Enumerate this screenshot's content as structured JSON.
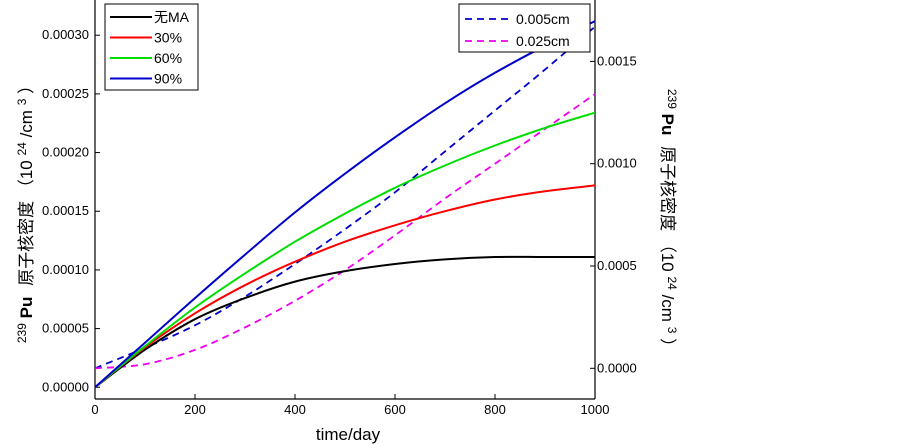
{
  "chart_data": {
    "type": "line",
    "xlabel": "time/day",
    "x_ticks": [
      "0",
      "200",
      "400",
      "600",
      "800",
      "1000"
    ],
    "xlim": [
      0,
      1000
    ],
    "y_left": {
      "label_prefix": "239",
      "label_element": "Pu",
      "label_chinese": "原子核密度",
      "label_unit": "（10",
      "label_unit_sup": "24",
      "label_unit_tail": "/cm",
      "label_unit_sup2": "3",
      "label_unit_close": "）",
      "ylim": [
        -1e-05,
        0.00033
      ],
      "ticks": [
        "0.00000",
        "0.00005",
        "0.00010",
        "0.00015",
        "0.00020",
        "0.00025",
        "0.00030"
      ]
    },
    "y_right": {
      "label_prefix": "239",
      "label_element": "Pu",
      "label_chinese": "原子核密度",
      "label_unit": "（10",
      "label_unit_sup": "24",
      "label_unit_tail": "/cm",
      "label_unit_sup2": "3",
      "label_unit_close": "）",
      "ylim": [
        -0.00015,
        0.0018
      ],
      "ticks": [
        "0.0000",
        "0.0005",
        "0.0010",
        "0.0015"
      ]
    },
    "series_left": [
      {
        "name": "无MA",
        "color": "#000000",
        "x": [
          0,
          100,
          200,
          300,
          400,
          500,
          600,
          700,
          800,
          900,
          1000
        ],
        "y": [
          0.0,
          3.2e-05,
          5.8e-05,
          7.6e-05,
          9e-05,
          9.9e-05,
          0.000105,
          0.000109,
          0.000111,
          0.000111,
          0.000111
        ]
      },
      {
        "name": "30%",
        "color": "#ff0000",
        "x": [
          0,
          100,
          200,
          300,
          400,
          500,
          600,
          700,
          800,
          900,
          1000
        ],
        "y": [
          0.0,
          3.4e-05,
          6.3e-05,
          8.7e-05,
          0.000107,
          0.000124,
          0.000138,
          0.00015,
          0.00016,
          0.000167,
          0.000172
        ]
      },
      {
        "name": "60%",
        "color": "#00dd00",
        "x": [
          0,
          100,
          200,
          300,
          400,
          500,
          600,
          700,
          800,
          900,
          1000
        ],
        "y": [
          0.0,
          3.5e-05,
          6.8e-05,
          9.7e-05,
          0.000124,
          0.000148,
          0.00017,
          0.000189,
          0.000206,
          0.000221,
          0.000234
        ]
      },
      {
        "name": "90%",
        "color": "#0000cc",
        "x": [
          0,
          100,
          200,
          300,
          400,
          500,
          600,
          700,
          800,
          900,
          1000
        ],
        "y": [
          0.0,
          3.8e-05,
          7.6e-05,
          0.000113,
          0.000149,
          0.000182,
          0.000213,
          0.000242,
          0.000268,
          0.000291,
          0.000312
        ]
      }
    ],
    "series_right": [
      {
        "name": "0.005cm",
        "color": "#0000cc",
        "dash": "dashed",
        "x": [
          0,
          100,
          200,
          300,
          400,
          500,
          600,
          700,
          800,
          900,
          1000
        ],
        "y": [
          0.0,
          0.0001,
          0.00021,
          0.00035,
          0.00051,
          0.00068,
          0.00086,
          0.00106,
          0.00126,
          0.00146,
          0.00167
        ]
      },
      {
        "name": "0.025cm",
        "color": "#ee00ee",
        "dash": "dashed",
        "x": [
          0,
          100,
          200,
          300,
          400,
          500,
          600,
          700,
          800,
          900,
          1000
        ],
        "y": [
          0.0,
          2e-05,
          9e-05,
          0.0002,
          0.00033,
          0.00048,
          0.00065,
          0.00083,
          0.001,
          0.00117,
          0.00134
        ]
      }
    ],
    "legend_left_position": "top-left",
    "legend_right_position": "top-right",
    "grid": false
  }
}
